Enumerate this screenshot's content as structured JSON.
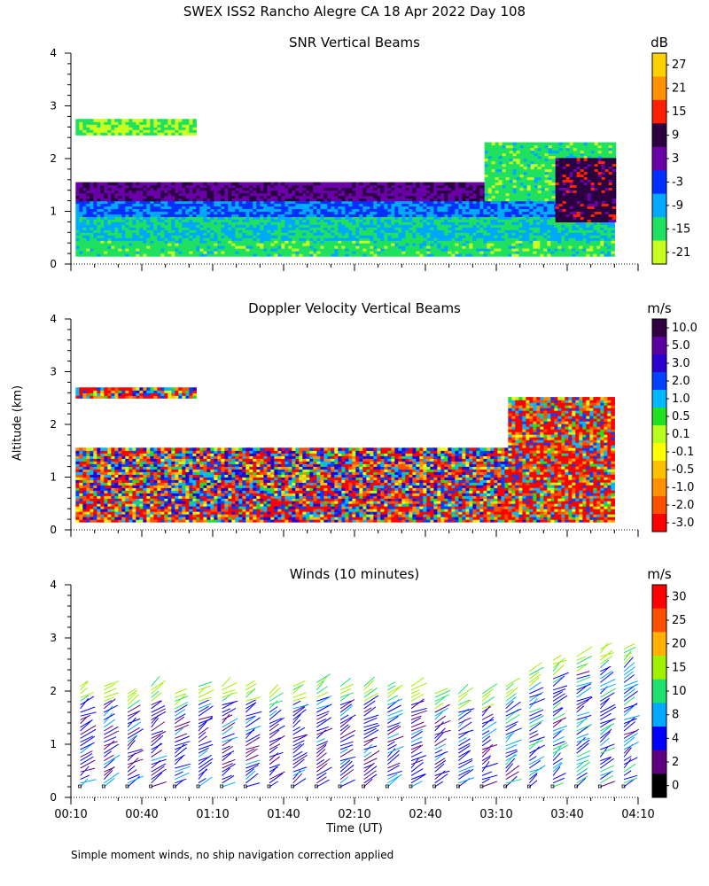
{
  "title": "SWEX ISS2 Rancho Alegre CA  18 Apr 2022 Day 108",
  "footnote": "Simple moment winds, no ship navigation correction applied",
  "chart_data": {
    "type": "heatmap",
    "xlabel": "Time (UT)",
    "ylabel": "Altitude (km)",
    "x_ticks": [
      "00:10",
      "00:40",
      "01:10",
      "01:40",
      "02:10",
      "02:40",
      "03:10",
      "03:40",
      "04:10"
    ],
    "y_ticks": [
      "0",
      "1",
      "2",
      "3",
      "4"
    ],
    "xlim_minutes": [
      10,
      250
    ],
    "ylim_km": [
      0,
      4
    ],
    "panels": [
      {
        "title": "SNR Vertical Beams",
        "unit": "dB",
        "colorbar_labels": [
          "27",
          "21",
          "15",
          "9",
          "3",
          "-3",
          "-9",
          "-15",
          "-21"
        ],
        "layers": [
          {
            "t_start": 12,
            "t_end": 240,
            "alt_bottom": 0.15,
            "alt_top": 0.45,
            "value": -12
          },
          {
            "t_start": 12,
            "t_end": 240,
            "alt_bottom": 0.45,
            "alt_top": 0.9,
            "value": -9
          },
          {
            "t_start": 12,
            "t_end": 240,
            "alt_bottom": 0.9,
            "alt_top": 1.2,
            "value": -3
          },
          {
            "t_start": 12,
            "t_end": 195,
            "alt_bottom": 1.2,
            "alt_top": 1.55,
            "value": 8
          },
          {
            "t_start": 12,
            "t_end": 63,
            "alt_bottom": 2.45,
            "alt_top": 2.75,
            "value": -15
          },
          {
            "t_start": 185,
            "t_end": 240,
            "alt_bottom": 1.2,
            "alt_top": 2.3,
            "value": -12
          },
          {
            "t_start": 215,
            "t_end": 240,
            "alt_bottom": 0.8,
            "alt_top": 2.0,
            "value": 12
          }
        ]
      },
      {
        "title": "Doppler Velocity Vertical Beams",
        "unit": "m/s",
        "colorbar_labels": [
          "10.0",
          "5.0",
          "3.0",
          "2.0",
          "1.0",
          "0.5",
          "0.1",
          "-0.1",
          "-0.5",
          "-1.0",
          "-2.0",
          "-3.0"
        ],
        "layers": [
          {
            "t_start": 12,
            "t_end": 240,
            "alt_bottom": 0.15,
            "alt_top": 0.6,
            "value": -0.3
          },
          {
            "t_start": 12,
            "t_end": 195,
            "alt_bottom": 0.6,
            "alt_top": 1.55,
            "value": 0.2
          },
          {
            "t_start": 12,
            "t_end": 63,
            "alt_bottom": 2.5,
            "alt_top": 2.7,
            "value": -0.7
          },
          {
            "t_start": 195,
            "t_end": 240,
            "alt_bottom": 0.2,
            "alt_top": 2.5,
            "value": -1.2
          }
        ]
      },
      {
        "title": "Winds (10 minutes)",
        "unit": "m/s",
        "colorbar_labels": [
          "30",
          "25",
          "20",
          "15",
          "10",
          "8",
          "4",
          "2",
          "0"
        ],
        "profiles_t": [
          14,
          24,
          34,
          44,
          54,
          64,
          74,
          84,
          94,
          104,
          114,
          124,
          134,
          144,
          154,
          164,
          174,
          184,
          194,
          204,
          214,
          224,
          234,
          244
        ],
        "profiles_top_km": [
          2.1,
          2.1,
          2.0,
          2.1,
          2.0,
          2.1,
          2.1,
          2.1,
          2.0,
          2.1,
          2.2,
          2.1,
          2.1,
          2.1,
          2.1,
          2.0,
          2.0,
          2.0,
          2.1,
          2.4,
          2.6,
          2.7,
          2.8,
          2.8
        ]
      }
    ]
  }
}
